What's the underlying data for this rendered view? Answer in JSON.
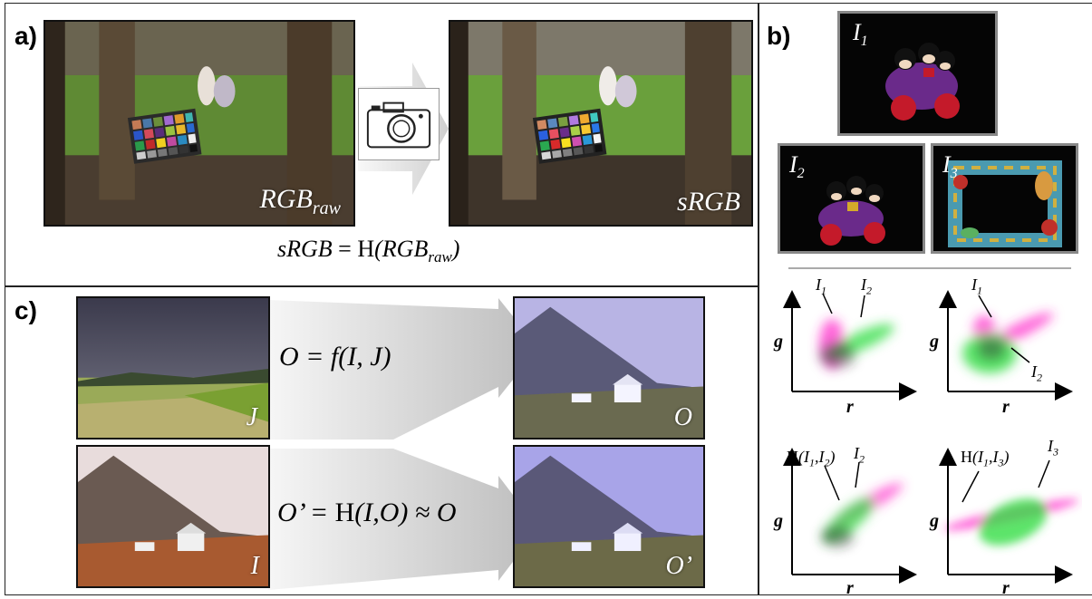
{
  "panel_a": {
    "label": "a)",
    "left_tag_main": "RGB",
    "left_tag_sub": "raw",
    "right_tag": "sRGB",
    "eq_left": "sRGB",
    "eq_mid": " = H",
    "eq_arg_main": "(RGB",
    "eq_arg_sub": "raw",
    "eq_close": ")"
  },
  "panel_b": {
    "label": "b)",
    "i1": "I",
    "i1_sub": "1",
    "i2": "I",
    "i2_sub": "2",
    "i3": "I",
    "i3_sub": "3",
    "axis_g": "g",
    "axis_r": "r",
    "sc1_a": "I",
    "sc1_a_sub": "1",
    "sc1_b": "I",
    "sc1_b_sub": "2",
    "sc2_a": "I",
    "sc2_a_sub": "1",
    "sc2_b": "I",
    "sc2_b_sub": "2",
    "sc3_h": "H",
    "sc3_arg": "(I",
    "sc3_s1": "1",
    "sc3_mid": ",I",
    "sc3_s2": "2",
    "sc3_close": ")",
    "sc3_b": "I",
    "sc3_b_sub": "2",
    "sc4_h": "H",
    "sc4_arg": "(I",
    "sc4_s1": "1",
    "sc4_mid": ",I",
    "sc4_s2": "3",
    "sc4_close": ")",
    "sc4_b": "I",
    "sc4_b_sub": "3"
  },
  "panel_c": {
    "label": "c)",
    "tag_J": "J",
    "tag_I": "I",
    "tag_O": "O",
    "tag_O2": "O’",
    "eq1": "O = f(I, J)",
    "eq2_a": "O’ = ",
    "eq2_h": "H",
    "eq2_b": "(I,O) ≈ O"
  },
  "colors": {
    "magenta": "#ff33cc",
    "green": "#33dd44",
    "border": "#222222"
  }
}
